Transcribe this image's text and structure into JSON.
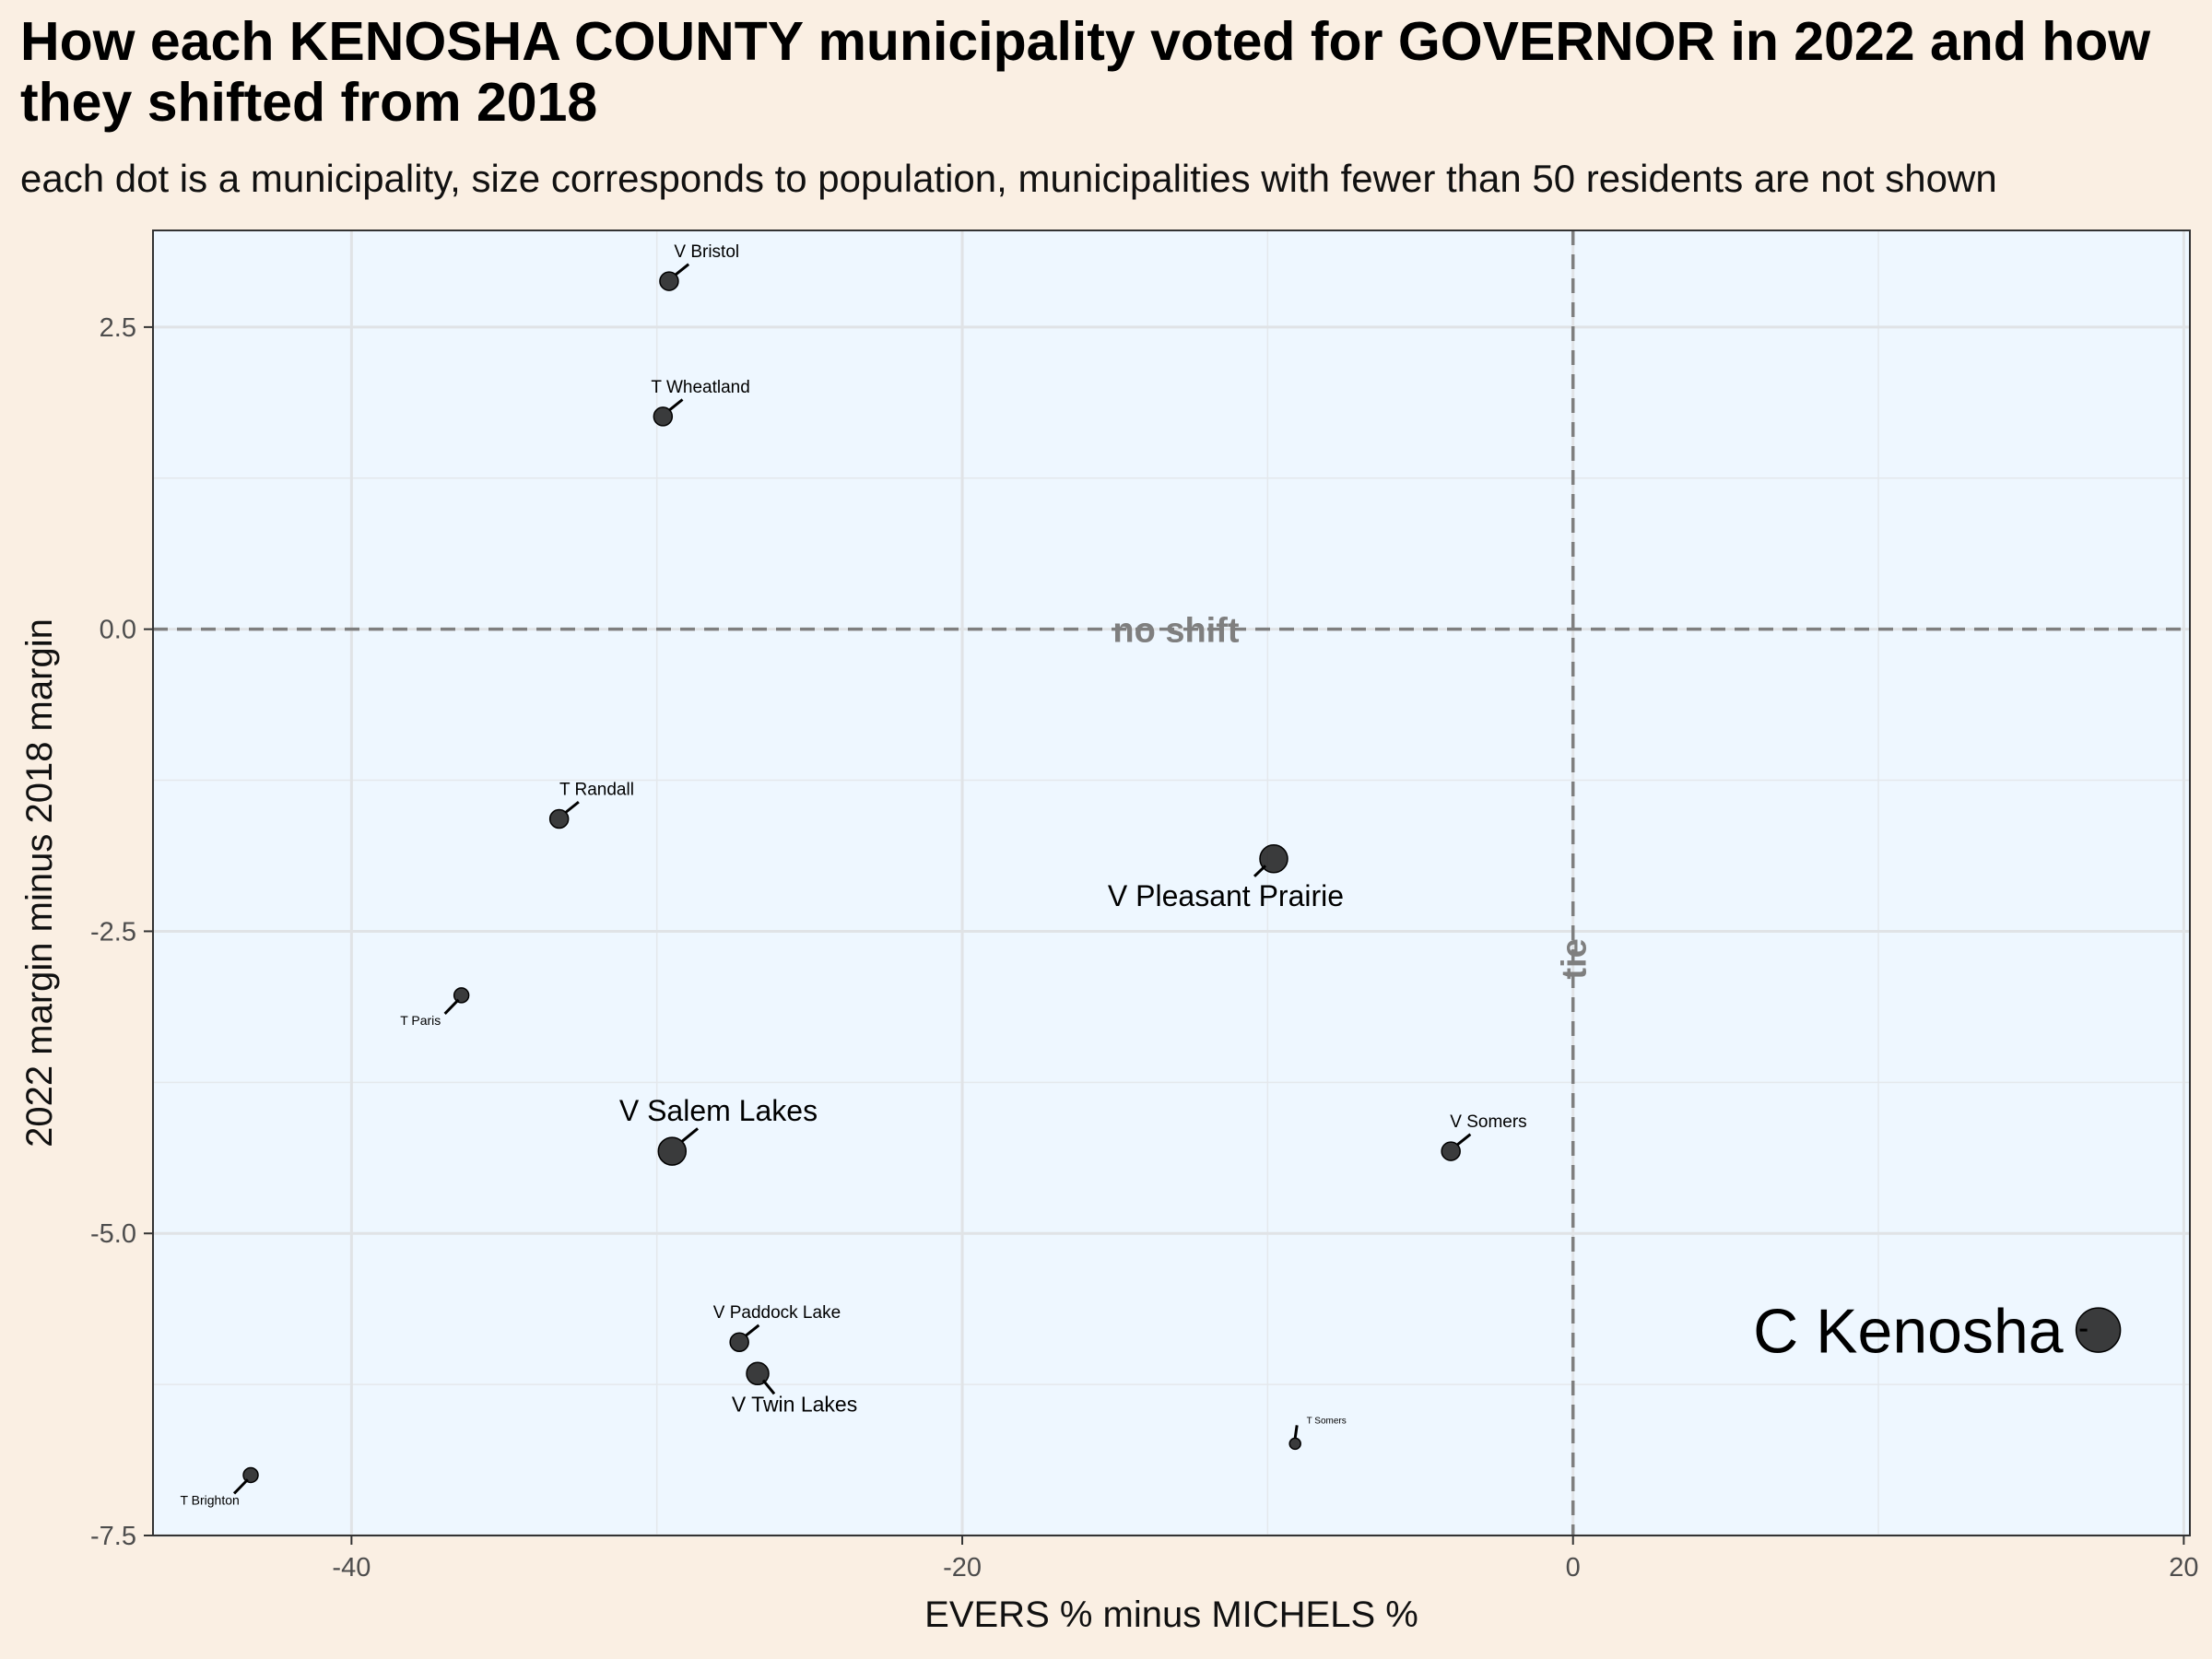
{
  "title": "How each KENOSHA COUNTY municipality voted for GOVERNOR in 2022 and how they shifted from 2018",
  "subtitle": "each dot is a municipality, size corresponds to population, municipalities with fewer than 50 residents are not shown",
  "colors": {
    "page_background": "#faefe3",
    "panel_background": "#eef7ff",
    "point_fill": "#1a1a1a",
    "reference_line": "#7f7f7f"
  },
  "chart_data": {
    "type": "scatter",
    "xlabel": "EVERS % minus MICHELS %",
    "ylabel": "2022 margin minus 2018 margin",
    "xlim": [
      -46.5,
      20.2
    ],
    "ylim": [
      -7.5,
      3.3
    ],
    "x_ticks": [
      -40,
      -20,
      0,
      20
    ],
    "x_tick_labels": [
      "-40",
      "-20",
      "0",
      "20"
    ],
    "y_ticks": [
      2.5,
      0,
      -2.5,
      -5,
      -7.5
    ],
    "y_tick_labels": [
      "2.5",
      "0.0",
      "-2.5",
      "-5.0",
      "-7.5"
    ],
    "grid": true,
    "reference_lines": [
      {
        "axis": "y",
        "value": 0,
        "label": "no shift"
      },
      {
        "axis": "x",
        "value": 0,
        "label": "tie"
      }
    ],
    "points": [
      {
        "name": "V Bristol",
        "x": -29.6,
        "y": 2.88,
        "size": "small",
        "label_pos": "above"
      },
      {
        "name": "T Wheatland",
        "x": -29.8,
        "y": 1.76,
        "size": "small",
        "label_pos": "above"
      },
      {
        "name": "T Randall",
        "x": -33.2,
        "y": -1.57,
        "size": "small",
        "label_pos": "above"
      },
      {
        "name": "T Paris",
        "x": -36.4,
        "y": -3.03,
        "size": "tiny",
        "label_pos": "below-left"
      },
      {
        "name": "V Salem Lakes",
        "x": -29.5,
        "y": -4.32,
        "size": "medium",
        "label_pos": "above"
      },
      {
        "name": "V Paddock Lake",
        "x": -27.3,
        "y": -5.9,
        "size": "small",
        "label_pos": "above"
      },
      {
        "name": "V Twin Lakes",
        "x": -26.7,
        "y": -6.16,
        "size": "medium-small",
        "label_pos": "below"
      },
      {
        "name": "T Brighton",
        "x": -43.3,
        "y": -7.0,
        "size": "tiny",
        "label_pos": "below-left"
      },
      {
        "name": "V Pleasant Prairie",
        "x": -9.8,
        "y": -1.9,
        "size": "medium",
        "label_pos": "below"
      },
      {
        "name": "V Somers",
        "x": -4.0,
        "y": -4.32,
        "size": "small",
        "label_pos": "above"
      },
      {
        "name": "T Somers",
        "x": -9.1,
        "y": -6.74,
        "size": "micro",
        "label_pos": "above-right"
      },
      {
        "name": "C Kenosha",
        "x": 17.2,
        "y": -5.8,
        "size": "large",
        "label_pos": "left"
      }
    ]
  }
}
